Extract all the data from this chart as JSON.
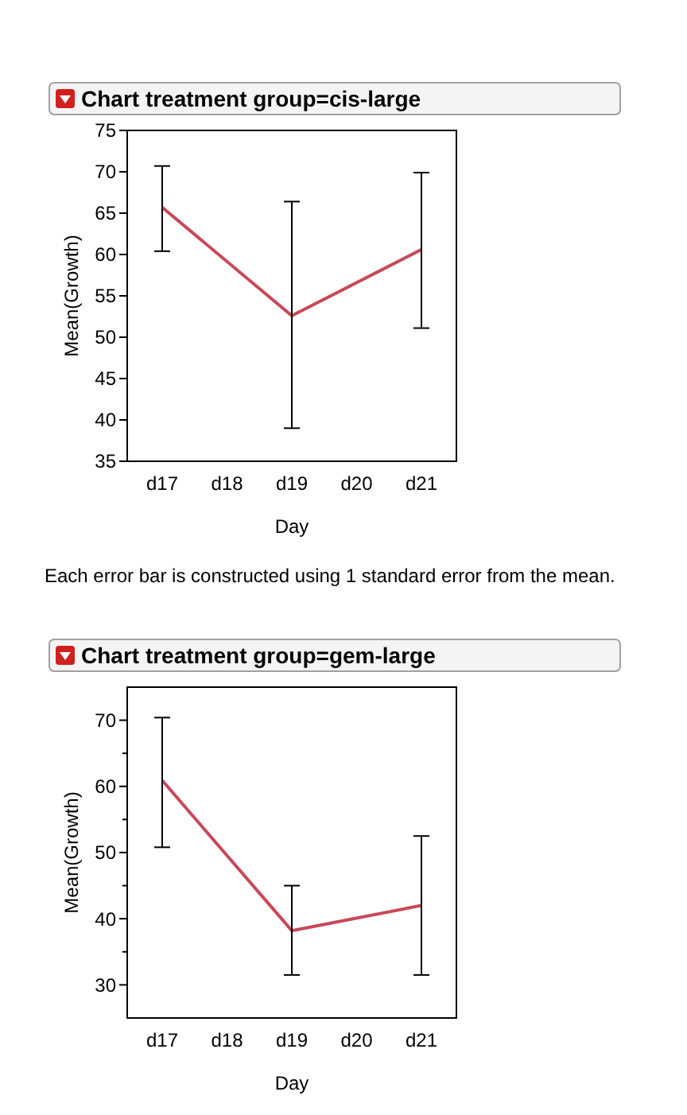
{
  "chart_data": [
    {
      "type": "line",
      "title": "Chart treatment group=cis-large",
      "xlabel": "Day",
      "ylabel": "Mean(Growth)",
      "categories": [
        "d17",
        "d18",
        "d19",
        "d20",
        "d21"
      ],
      "series": [
        {
          "color": "#c8485a",
          "values": [
            65.7,
            null,
            52.6,
            null,
            60.6
          ],
          "errors": [
            [
              60.4,
              70.7
            ],
            null,
            [
              39,
              66.4
            ],
            null,
            [
              51.1,
              69.9
            ]
          ]
        }
      ],
      "ylim": [
        35,
        75
      ],
      "yticks": [
        35,
        40,
        45,
        50,
        55,
        60,
        65,
        70,
        75
      ],
      "annotations": [
        "Each error bar is constructed using 1 standard error from the mean."
      ]
    },
    {
      "type": "line",
      "title": "Chart treatment group=gem-large",
      "xlabel": "Day",
      "ylabel": "Mean(Growth)",
      "categories": [
        "d17",
        "d18",
        "d19",
        "d20",
        "d21"
      ],
      "series": [
        {
          "color": "#c8485a",
          "values": [
            60.9,
            null,
            38.2,
            null,
            42.0
          ],
          "errors": [
            [
              50.8,
              70.4
            ],
            null,
            [
              31.5,
              45.0
            ],
            null,
            [
              31.5,
              52.5
            ]
          ]
        }
      ],
      "ylim": [
        25,
        75
      ],
      "yticks": [
        30,
        {
          "value": 35,
          "label": null
        },
        40,
        {
          "value": 45,
          "label": null
        },
        50,
        {
          "value": 55,
          "label": null
        },
        60,
        {
          "value": 65,
          "label": null
        },
        70
      ]
    }
  ]
}
